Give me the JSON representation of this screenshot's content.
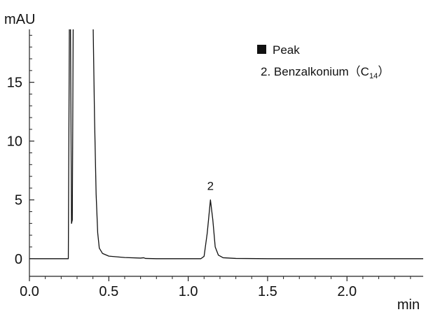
{
  "chart_data": {
    "type": "line",
    "title": "",
    "xlabel": "min",
    "ylabel": "mAU",
    "xlim": [
      0.0,
      2.48
    ],
    "ylim": [
      -1.5,
      19.5
    ],
    "x_ticks": [
      "0.0",
      "0.5",
      "1.0",
      "1.5",
      "2.0"
    ],
    "y_ticks": [
      "0",
      "5",
      "10",
      "15"
    ],
    "grid": false,
    "legend": {
      "marker": "filled-square",
      "header": "Peak",
      "item": "2. Benzalkonium（C",
      "item_subscript": "14",
      "item_suffix": "）",
      "placement": "top-right"
    },
    "peak_labels": [
      {
        "label": "2",
        "x": 1.14,
        "y": 5.0
      }
    ],
    "series": [
      {
        "points": [
          [
            0.0,
            0.0
          ],
          [
            0.24,
            0.0
          ],
          [
            0.245,
            0.0
          ],
          [
            0.252,
            21.0
          ],
          [
            0.258,
            21.0
          ],
          [
            0.265,
            3.0
          ],
          [
            0.27,
            3.3
          ],
          [
            0.276,
            21.0
          ],
          [
            0.3,
            21.0
          ],
          [
            0.33,
            21.0
          ],
          [
            0.36,
            21.0
          ],
          [
            0.4,
            21.0
          ],
          [
            0.41,
            12.0
          ],
          [
            0.42,
            5.5
          ],
          [
            0.43,
            2.2
          ],
          [
            0.44,
            0.9
          ],
          [
            0.46,
            0.45
          ],
          [
            0.5,
            0.22
          ],
          [
            0.6,
            0.1
          ],
          [
            0.7,
            0.05
          ],
          [
            0.72,
            0.08
          ],
          [
            0.73,
            0.02
          ],
          [
            0.8,
            0.0
          ],
          [
            1.08,
            0.0
          ],
          [
            1.1,
            0.2
          ],
          [
            1.12,
            2.2
          ],
          [
            1.14,
            5.0
          ],
          [
            1.155,
            3.3
          ],
          [
            1.17,
            1.0
          ],
          [
            1.19,
            0.3
          ],
          [
            1.22,
            0.08
          ],
          [
            1.3,
            0.02
          ],
          [
            1.5,
            0.0
          ],
          [
            2.48,
            0.0
          ]
        ]
      }
    ]
  }
}
